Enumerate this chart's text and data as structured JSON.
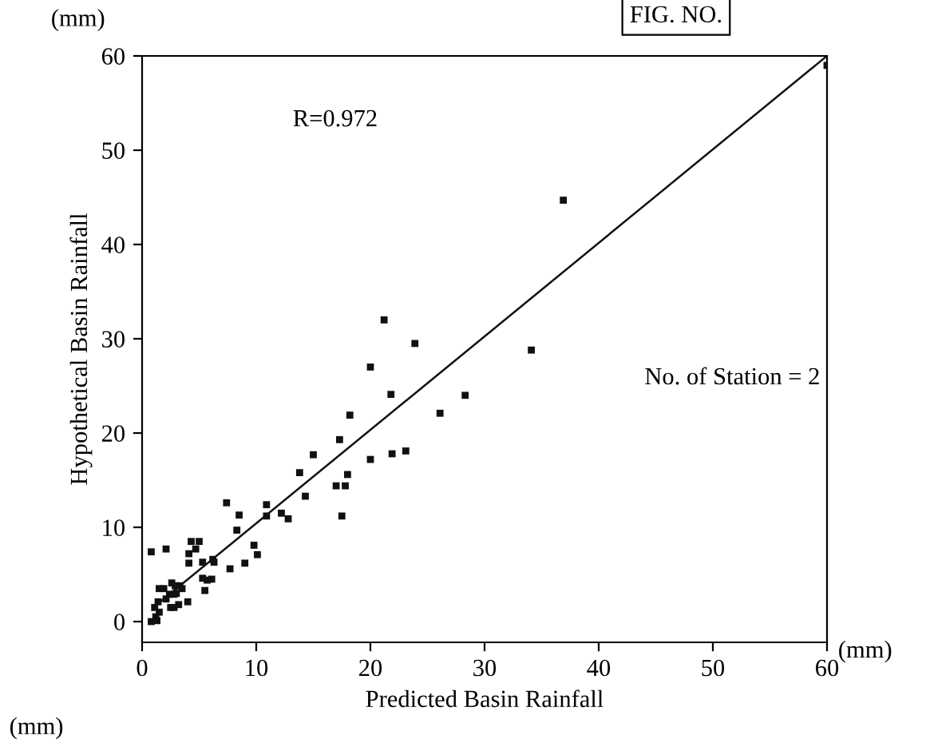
{
  "chart_data": {
    "type": "scatter",
    "xlabel": "Predicted Basin Rainfall",
    "ylabel": "Hypothetical Basin Rainfall",
    "xlim": [
      0,
      60
    ],
    "ylim": [
      -2.2,
      60
    ],
    "xticks": [
      0,
      10,
      20,
      30,
      40,
      50,
      60
    ],
    "yticks": [
      0,
      10,
      20,
      30,
      40,
      50,
      60
    ],
    "grid": false,
    "annotations": [
      "R=0.972",
      "No. of Station = 2",
      "FIG. NO.",
      "(mm)",
      "(mm)",
      "(mm)"
    ],
    "series": [
      {
        "marker": "square",
        "color": "#111111",
        "x": [
          36.9,
          60,
          21.2,
          23.9,
          34.1,
          20.0,
          21.8,
          28.3,
          18.2,
          26.1,
          17.3,
          15.0,
          23.1,
          21.9,
          20.0,
          13.8,
          18.0,
          14.3,
          17.0,
          17.8,
          7.4,
          10.9,
          8.5,
          10.9,
          12.2,
          12.8,
          17.5,
          8.3,
          9.8,
          10.1,
          9.0,
          7.7,
          0.8,
          2.1,
          4.3,
          5.0,
          4.1,
          4.7,
          4.1,
          5.3,
          6.2,
          6.3,
          5.3,
          6.1,
          5.5,
          5.7,
          4.0,
          1.5,
          1.9,
          2.6,
          2.9,
          3.3,
          3.5,
          2.4,
          2.8,
          3.0,
          2.5,
          2.8,
          3.2,
          1.4,
          1.1,
          1.2,
          0.8,
          1.3,
          1.5,
          2.1
        ],
        "values": [
          44.7,
          59,
          32.0,
          29.5,
          28.8,
          27.0,
          24.1,
          24.0,
          21.9,
          22.1,
          19.3,
          17.7,
          18.1,
          17.8,
          17.2,
          15.8,
          15.6,
          13.3,
          14.4,
          14.4,
          12.6,
          12.4,
          11.3,
          11.2,
          11.5,
          10.9,
          11.2,
          9.7,
          8.1,
          7.1,
          6.2,
          5.6,
          7.4,
          7.7,
          8.5,
          8.5,
          7.2,
          7.7,
          6.2,
          6.3,
          6.6,
          6.3,
          4.6,
          4.5,
          3.3,
          4.4,
          2.1,
          3.5,
          3.5,
          4.1,
          3.8,
          3.8,
          3.5,
          2.9,
          2.9,
          3.0,
          1.5,
          1.5,
          1.8,
          2.1,
          1.5,
          0.5,
          0.0,
          0.1,
          1.0,
          2.4
        ]
      },
      {
        "type": "line",
        "color": "#111111",
        "x": [
          1,
          60
        ],
        "values": [
          1.5,
          60
        ]
      }
    ]
  }
}
